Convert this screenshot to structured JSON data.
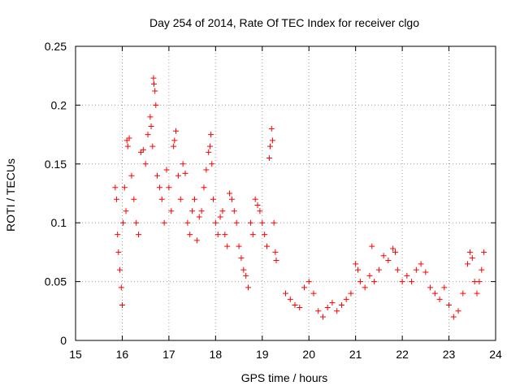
{
  "chart_data": {
    "type": "scatter",
    "title": "Day 254 of 2014, Rate Of TEC Index for receiver clgo",
    "xlabel": "GPS time / hours",
    "ylabel": "ROTI / TECUs",
    "xlim": [
      15,
      24
    ],
    "ylim": [
      0,
      0.25
    ],
    "xticks": [
      "15",
      "16",
      "17",
      "18",
      "19",
      "20",
      "21",
      "22",
      "23",
      "24"
    ],
    "yticks": [
      "0",
      "0.05",
      "0.1",
      "0.15",
      "0.2",
      "0.25"
    ],
    "grid": true,
    "marker": "+",
    "color": "#ff0000",
    "series": [
      {
        "name": "ROTI",
        "points": [
          [
            15.85,
            0.13
          ],
          [
            15.88,
            0.12
          ],
          [
            15.9,
            0.09
          ],
          [
            15.92,
            0.075
          ],
          [
            15.95,
            0.06
          ],
          [
            15.98,
            0.045
          ],
          [
            16.0,
            0.03
          ],
          [
            16.02,
            0.1
          ],
          [
            16.05,
            0.13
          ],
          [
            16.08,
            0.11
          ],
          [
            16.1,
            0.17
          ],
          [
            16.12,
            0.165
          ],
          [
            16.15,
            0.172
          ],
          [
            16.2,
            0.14
          ],
          [
            16.25,
            0.12
          ],
          [
            16.3,
            0.1
          ],
          [
            16.35,
            0.09
          ],
          [
            16.4,
            0.16
          ],
          [
            16.45,
            0.162
          ],
          [
            16.5,
            0.15
          ],
          [
            16.55,
            0.175
          ],
          [
            16.6,
            0.19
          ],
          [
            16.62,
            0.182
          ],
          [
            16.65,
            0.165
          ],
          [
            16.67,
            0.223
          ],
          [
            16.68,
            0.218
          ],
          [
            16.7,
            0.212
          ],
          [
            16.72,
            0.2
          ],
          [
            16.75,
            0.14
          ],
          [
            16.8,
            0.13
          ],
          [
            16.85,
            0.12
          ],
          [
            16.9,
            0.1
          ],
          [
            16.95,
            0.145
          ],
          [
            17.0,
            0.13
          ],
          [
            17.05,
            0.11
          ],
          [
            17.1,
            0.165
          ],
          [
            17.12,
            0.17
          ],
          [
            17.15,
            0.178
          ],
          [
            17.2,
            0.14
          ],
          [
            17.25,
            0.12
          ],
          [
            17.3,
            0.15
          ],
          [
            17.35,
            0.142
          ],
          [
            17.4,
            0.1
          ],
          [
            17.45,
            0.09
          ],
          [
            17.5,
            0.11
          ],
          [
            17.55,
            0.12
          ],
          [
            17.6,
            0.085
          ],
          [
            17.65,
            0.105
          ],
          [
            17.7,
            0.11
          ],
          [
            17.75,
            0.13
          ],
          [
            17.8,
            0.145
          ],
          [
            17.85,
            0.16
          ],
          [
            17.88,
            0.165
          ],
          [
            17.9,
            0.175
          ],
          [
            17.92,
            0.15
          ],
          [
            17.95,
            0.12
          ],
          [
            18.0,
            0.1
          ],
          [
            18.05,
            0.09
          ],
          [
            18.1,
            0.105
          ],
          [
            18.15,
            0.11
          ],
          [
            18.2,
            0.09
          ],
          [
            18.25,
            0.08
          ],
          [
            18.3,
            0.125
          ],
          [
            18.35,
            0.12
          ],
          [
            18.4,
            0.11
          ],
          [
            18.45,
            0.1
          ],
          [
            18.5,
            0.08
          ],
          [
            18.55,
            0.07
          ],
          [
            18.6,
            0.06
          ],
          [
            18.65,
            0.055
          ],
          [
            18.7,
            0.045
          ],
          [
            18.75,
            0.1
          ],
          [
            18.8,
            0.09
          ],
          [
            18.85,
            0.12
          ],
          [
            18.9,
            0.115
          ],
          [
            18.95,
            0.11
          ],
          [
            19.0,
            0.1
          ],
          [
            19.05,
            0.09
          ],
          [
            19.1,
            0.08
          ],
          [
            19.15,
            0.155
          ],
          [
            19.17,
            0.165
          ],
          [
            19.2,
            0.18
          ],
          [
            19.22,
            0.17
          ],
          [
            19.25,
            0.1
          ],
          [
            19.28,
            0.075
          ],
          [
            19.3,
            0.068
          ],
          [
            19.5,
            0.04
          ],
          [
            19.6,
            0.035
          ],
          [
            19.7,
            0.03
          ],
          [
            19.8,
            0.028
          ],
          [
            19.9,
            0.045
          ],
          [
            20.0,
            0.05
          ],
          [
            20.1,
            0.04
          ],
          [
            20.2,
            0.025
          ],
          [
            20.3,
            0.02
          ],
          [
            20.4,
            0.028
          ],
          [
            20.5,
            0.032
          ],
          [
            20.6,
            0.025
          ],
          [
            20.7,
            0.03
          ],
          [
            20.8,
            0.035
          ],
          [
            20.9,
            0.04
          ],
          [
            21.0,
            0.065
          ],
          [
            21.05,
            0.06
          ],
          [
            21.1,
            0.05
          ],
          [
            21.2,
            0.045
          ],
          [
            21.3,
            0.055
          ],
          [
            21.35,
            0.08
          ],
          [
            21.4,
            0.05
          ],
          [
            21.5,
            0.06
          ],
          [
            21.6,
            0.072
          ],
          [
            21.7,
            0.068
          ],
          [
            21.8,
            0.078
          ],
          [
            21.85,
            0.075
          ],
          [
            21.9,
            0.06
          ],
          [
            22.0,
            0.05
          ],
          [
            22.1,
            0.055
          ],
          [
            22.2,
            0.05
          ],
          [
            22.3,
            0.06
          ],
          [
            22.4,
            0.065
          ],
          [
            22.5,
            0.058
          ],
          [
            22.6,
            0.045
          ],
          [
            22.7,
            0.04
          ],
          [
            22.8,
            0.035
          ],
          [
            22.9,
            0.045
          ],
          [
            23.0,
            0.03
          ],
          [
            23.1,
            0.02
          ],
          [
            23.2,
            0.025
          ],
          [
            23.3,
            0.04
          ],
          [
            23.4,
            0.065
          ],
          [
            23.45,
            0.075
          ],
          [
            23.5,
            0.07
          ],
          [
            23.55,
            0.05
          ],
          [
            23.6,
            0.04
          ],
          [
            23.65,
            0.05
          ],
          [
            23.7,
            0.06
          ],
          [
            23.75,
            0.075
          ]
        ]
      }
    ]
  }
}
